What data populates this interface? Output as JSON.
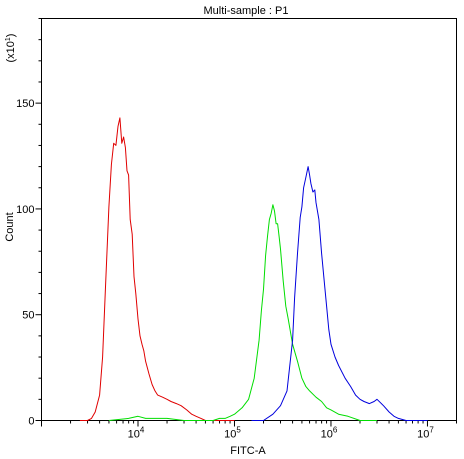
{
  "chart_data": {
    "type": "line",
    "title": "Multi-sample : P1",
    "xlabel": "FITC-A",
    "ylabel": "Count",
    "y_multiplier_label": "(x10",
    "y_multiplier_exp": "1",
    "y_multiplier_close": ")",
    "x_scale": "log",
    "xlim": [
      1000,
      20000000
    ],
    "ylim": [
      0,
      190
    ],
    "x_ticks": [
      {
        "value": 10000,
        "base": "10",
        "exp": "4"
      },
      {
        "value": 100000,
        "base": "10",
        "exp": "5"
      },
      {
        "value": 1000000,
        "base": "10",
        "exp": "6"
      },
      {
        "value": 10000000,
        "base": "10",
        "exp": "7"
      }
    ],
    "y_ticks": [
      {
        "value": 0,
        "label": "0"
      },
      {
        "value": 50,
        "label": "50"
      },
      {
        "value": 100,
        "label": "100"
      },
      {
        "value": 150,
        "label": "150"
      }
    ],
    "grid": false,
    "legend": "none",
    "series": [
      {
        "color": "#e00000",
        "x": [
          2500,
          3000,
          3300,
          3600,
          4000,
          4300,
          4600,
          5000,
          5300,
          5600,
          5900,
          6200,
          6500,
          6800,
          7100,
          7400,
          7700,
          8000,
          8300,
          8700,
          9100,
          9500,
          10000,
          10500,
          11000,
          11500,
          12000,
          13000,
          14000,
          15000,
          16000,
          18000,
          20000,
          22000,
          25000,
          28000,
          32000,
          36000,
          40000,
          45000,
          50000,
          60000,
          80000,
          100000
        ],
        "y": [
          0,
          0,
          1,
          4,
          12,
          30,
          62,
          101,
          121,
          131,
          130,
          139,
          143,
          131,
          134,
          129,
          118,
          116,
          95,
          88,
          68,
          60,
          48,
          40,
          36,
          33,
          28,
          22,
          17,
          14,
          12,
          11,
          10,
          9,
          8,
          7,
          5,
          3,
          2,
          1,
          0,
          0,
          0,
          0
        ]
      },
      {
        "color": "#00dd00",
        "x": [
          5000,
          8000,
          10000,
          12000,
          16000,
          20000,
          30000,
          40000,
          50000,
          60000,
          70000,
          80000,
          90000,
          100000,
          120000,
          140000,
          160000,
          180000,
          190000,
          200000,
          210000,
          220000,
          230000,
          240000,
          250000,
          260000,
          270000,
          280000,
          290000,
          300000,
          320000,
          340000,
          360000,
          400000,
          450000,
          500000,
          550000,
          600000,
          700000,
          800000,
          900000,
          1000000,
          1200000,
          1500000,
          2000000,
          2500000,
          3000000
        ],
        "y": [
          0,
          1,
          2,
          1,
          1,
          1,
          0,
          0,
          0,
          0,
          1,
          1,
          2,
          3,
          6,
          10,
          20,
          38,
          52,
          62,
          78,
          87,
          95,
          98,
          102,
          99,
          93,
          93,
          87,
          81,
          66,
          54,
          48,
          36,
          28,
          20,
          16,
          14,
          11,
          9,
          6,
          5,
          3,
          2,
          0,
          0,
          0
        ]
      },
      {
        "color": "#0000dd",
        "x": [
          150000,
          200000,
          250000,
          300000,
          350000,
          400000,
          420000,
          450000,
          480000,
          500000,
          520000,
          550000,
          580000,
          600000,
          620000,
          650000,
          680000,
          700000,
          750000,
          800000,
          850000,
          900000,
          950000,
          1000000,
          1100000,
          1200000,
          1400000,
          1600000,
          1800000,
          2000000,
          2200000,
          2500000,
          2800000,
          3000000,
          3500000,
          4000000,
          4500000,
          5000000,
          6000000,
          8000000,
          10000000
        ],
        "y": [
          0,
          0,
          3,
          7,
          14,
          38,
          58,
          79,
          96,
          101,
          110,
          115,
          120,
          116,
          112,
          108,
          109,
          103,
          95,
          79,
          66,
          54,
          43,
          36,
          30,
          26,
          20,
          16,
          12,
          10,
          9,
          8,
          9,
          10,
          7,
          4,
          2,
          1,
          0,
          0,
          0
        ]
      }
    ]
  }
}
